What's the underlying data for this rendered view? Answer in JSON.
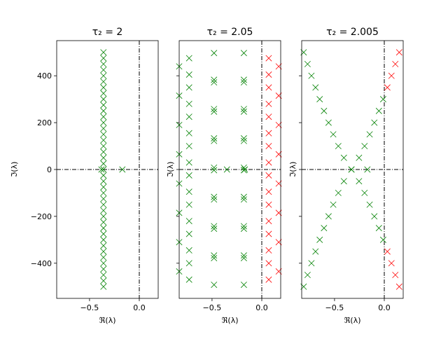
{
  "chart_data": [
    {
      "type": "scatter",
      "title": "τ₂ = 2",
      "x_label": "ℜ(λ)",
      "y_label": "ℑ(λ)",
      "xlim": [
        -0.83,
        0.19
      ],
      "ylim": [
        -550,
        550
      ],
      "xticks": [
        {
          "value": -0.5,
          "label": "−0.5"
        },
        {
          "value": 0,
          "label": "0.0"
        }
      ],
      "yticks": [
        {
          "value": -400,
          "label": "−400"
        },
        {
          "value": -200,
          "label": "−200"
        },
        0,
        200,
        400
      ],
      "ytick_labels": true,
      "axhline": 0,
      "axvline": 0,
      "series": [
        {
          "color": "#008000",
          "x": [
            -0.36,
            -0.36,
            -0.36,
            -0.36,
            -0.36,
            -0.36,
            -0.36,
            -0.36,
            -0.36,
            -0.36,
            -0.36,
            -0.36,
            -0.36,
            -0.36,
            -0.36,
            -0.36,
            -0.36,
            -0.36,
            -0.36,
            -0.36,
            -0.36,
            -0.36,
            -0.36,
            -0.36,
            -0.36,
            -0.36,
            -0.36,
            -0.36,
            -0.36,
            -0.36,
            -0.36,
            -0.36,
            -0.36,
            -0.36,
            -0.36,
            -0.36,
            -0.36,
            -0.36,
            -0.36,
            -0.36,
            -0.36,
            -0.17,
            -0.38
          ],
          "y": [
            -500,
            -475,
            -450,
            -425,
            -400,
            -375,
            -350,
            -325,
            -300,
            -275,
            -250,
            -225,
            -200,
            -175,
            -150,
            -125,
            -100,
            -75,
            -50,
            -25,
            0,
            25,
            50,
            75,
            100,
            125,
            150,
            175,
            200,
            225,
            250,
            275,
            300,
            325,
            350,
            375,
            400,
            425,
            450,
            475,
            500,
            0,
            0
          ]
        }
      ]
    },
    {
      "type": "scatter",
      "title": "τ₂ = 2.05",
      "x_label": "ℜ(λ)",
      "y_label": "ℑ(λ)",
      "xlim": [
        -0.83,
        0.19
      ],
      "ylim": [
        -550,
        550
      ],
      "xticks": [
        {
          "value": -0.5,
          "label": "−0.5"
        },
        {
          "value": 0,
          "label": "0.0"
        }
      ],
      "yticks": [
        -400,
        -200,
        0,
        200,
        400
      ],
      "ytick_labels": false,
      "axhline": 0,
      "axvline": 0,
      "series": [
        {
          "color": "#008000",
          "x": [
            -0.18,
            -0.48,
            -0.73,
            -0.83,
            -0.73,
            -0.48,
            -0.18,
            -0.18,
            -0.48,
            -0.73,
            -0.83,
            -0.73,
            -0.48,
            -0.18,
            -0.18,
            -0.48,
            -0.73,
            -0.83,
            -0.73,
            -0.48,
            -0.18,
            -0.18,
            -0.48,
            -0.73,
            -0.83,
            -0.73,
            -0.48,
            -0.18,
            -0.18,
            -0.48,
            -0.73,
            -0.83,
            -0.73,
            -0.48,
            -0.18,
            -0.18,
            -0.48,
            -0.73,
            -0.83,
            -0.73,
            -0.48,
            -0.18,
            -0.18,
            -0.48,
            -0.73,
            -0.83,
            -0.73,
            -0.48,
            -0.18,
            -0.18,
            -0.48,
            -0.73,
            -0.83,
            -0.73,
            -0.48,
            -0.18,
            -0.17,
            -0.35
          ],
          "y": [
            497,
            497,
            475,
            440,
            405,
            383,
            383,
            372,
            372,
            350,
            315,
            280,
            258,
            258,
            247,
            247,
            225,
            190,
            155,
            133,
            133,
            122,
            122,
            100,
            65,
            30,
            8,
            8,
            -3,
            -3,
            -25,
            -60,
            -95,
            -117,
            -117,
            -128,
            -128,
            -150,
            -185,
            -220,
            -242,
            -242,
            -253,
            -253,
            -275,
            -310,
            -345,
            -367,
            -367,
            -378,
            -378,
            -400,
            -435,
            -470,
            -492,
            -492,
            0,
            0
          ]
        },
        {
          "color": "#ff0000",
          "x": [
            0.17,
            0.07,
            0.07,
            0.17,
            0.07,
            0.07,
            0.17,
            0.07,
            0.07,
            0.17,
            0.07,
            0.07,
            0.17,
            0.07,
            0.07,
            0.17,
            0.07,
            0.07,
            0.17,
            0.07,
            0.07,
            0.17,
            0.07,
            0.07
          ],
          "y": [
            440,
            475,
            405,
            315,
            350,
            280,
            190,
            225,
            155,
            65,
            100,
            30,
            -60,
            -25,
            -95,
            -185,
            -150,
            -220,
            -310,
            -275,
            -345,
            -435,
            -400,
            -470
          ]
        }
      ]
    },
    {
      "type": "scatter",
      "title": "τ₂ = 2.005",
      "x_label": "ℜ(λ)",
      "y_label": "ℑ(λ)",
      "xlim": [
        -0.83,
        0.19
      ],
      "ylim": [
        -550,
        550
      ],
      "xticks": [
        {
          "value": -0.5,
          "label": "−0.5"
        },
        {
          "value": 0,
          "label": "0.0"
        }
      ],
      "yticks": [
        -400,
        -200,
        0,
        200,
        400
      ],
      "ytick_labels": false,
      "axhline": 0,
      "axvline": 0,
      "series": [
        {
          "color": "#008000",
          "x": [
            -0.81,
            -0.771,
            -0.732,
            -0.691,
            -0.649,
            -0.606,
            -0.56,
            -0.513,
            -0.462,
            -0.406,
            -0.33,
            -0.406,
            -0.462,
            -0.513,
            -0.56,
            -0.606,
            -0.649,
            -0.691,
            -0.732,
            -0.771,
            -0.81,
            -0.011,
            -0.054,
            -0.1,
            -0.147,
            -0.198,
            -0.254,
            -0.33,
            -0.254,
            -0.198,
            -0.147,
            -0.1,
            -0.054,
            -0.011,
            -0.17
          ],
          "y": [
            -500,
            -450,
            -400,
            -350,
            -300,
            -250,
            -200,
            -150,
            -100,
            -50,
            0,
            50,
            100,
            150,
            200,
            250,
            300,
            350,
            400,
            450,
            500,
            -300,
            -250,
            -200,
            -150,
            -100,
            -50,
            0,
            50,
            100,
            150,
            200,
            250,
            300,
            0
          ]
        },
        {
          "color": "#ff0000",
          "x": [
            0.15,
            0.111,
            0.072,
            0.031,
            0.031,
            0.072,
            0.111,
            0.15
          ],
          "y": [
            -500,
            -450,
            -400,
            -350,
            350,
            400,
            450,
            500
          ]
        }
      ]
    }
  ]
}
